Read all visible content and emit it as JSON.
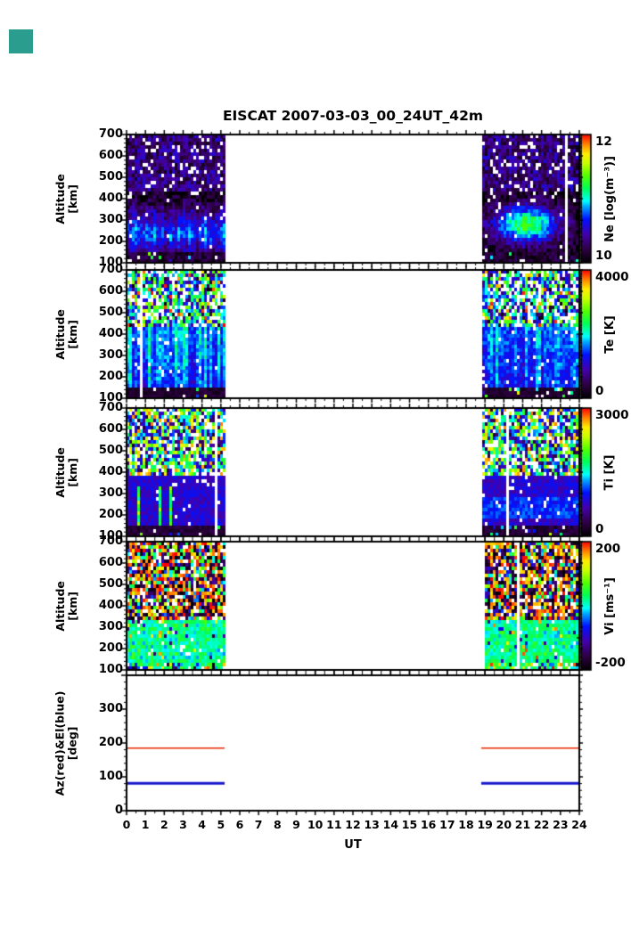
{
  "title": "EISCAT 2007-03-03_00_24UT_42m",
  "corner_square_color": "#2a9d8f",
  "x_axis": {
    "label": "UT",
    "range": [
      0,
      24
    ],
    "tick_labels": [
      "0",
      "1",
      "2",
      "3",
      "4",
      "5",
      "6",
      "7",
      "8",
      "9",
      "10",
      "11",
      "12",
      "13",
      "14",
      "15",
      "16",
      "17",
      "18",
      "19",
      "20",
      "21",
      "22",
      "23",
      "24"
    ]
  },
  "time_blocks": [
    [
      0,
      5.2
    ],
    [
      18.8,
      24
    ]
  ],
  "seed": 20070303,
  "colormap": [
    [
      0.0,
      "#000000"
    ],
    [
      0.1,
      "#2d0040"
    ],
    [
      0.22,
      "#4400aa"
    ],
    [
      0.34,
      "#0011ff"
    ],
    [
      0.44,
      "#00aaff"
    ],
    [
      0.48,
      "#00ffff"
    ],
    [
      0.58,
      "#00ff55"
    ],
    [
      0.68,
      "#55ff00"
    ],
    [
      0.78,
      "#ccff00"
    ],
    [
      0.85,
      "#ffee00"
    ],
    [
      0.92,
      "#ff8800"
    ],
    [
      1.0,
      "#ff0000"
    ]
  ],
  "chart_data": [
    {
      "type": "heatmap",
      "name": "Ne",
      "ylabel": "Altitude\n[km]",
      "y_range": [
        100,
        700
      ],
      "y_tick_labels": [
        "700",
        "600",
        "500",
        "400",
        "300",
        "200",
        "100"
      ],
      "colorbar": {
        "label": "Ne [log(m⁻³)]",
        "min": 10,
        "max": 12,
        "tick_labels": [
          "12",
          "10"
        ]
      },
      "model": {
        "kind": "ne",
        "base": 10.08,
        "noise": 0.38,
        "peak_alt": [
          240,
          280
        ],
        "peak_amp": [
          0.85,
          1.18
        ],
        "spread": [
          110,
          85
        ],
        "right_center": 21.2,
        "right_width": 1.7
      }
    },
    {
      "type": "heatmap",
      "name": "Te",
      "ylabel": "Altitude\n[km]",
      "y_range": [
        100,
        700
      ],
      "y_tick_labels": [
        "700",
        "600",
        "500",
        "400",
        "300",
        "200",
        "100"
      ],
      "colorbar": {
        "label": "Te [K]",
        "min": 0,
        "max": 4000,
        "tick_labels": [
          "4000",
          "0"
        ]
      },
      "model": {
        "kind": "te",
        "low_v": 300,
        "mid_base": 1050,
        "streak_amp": [
          900,
          650
        ],
        "noise": 600,
        "top_alt": 430
      }
    },
    {
      "type": "heatmap",
      "name": "Ti",
      "ylabel": "Altitude\n[km]",
      "y_range": [
        100,
        700
      ],
      "y_tick_labels": [
        "700",
        "600",
        "500",
        "400",
        "300",
        "200",
        "100"
      ],
      "colorbar": {
        "label": "Ti [K]",
        "min": 0,
        "max": 3000,
        "tick_labels": [
          "3000",
          "0"
        ]
      },
      "model": {
        "kind": "ti",
        "low_v": 250,
        "mid_base": 800,
        "mid_noise": 380,
        "streak_prob": 0.16,
        "streak_v": 1500,
        "band": [
          180,
          290,
          260
        ]
      }
    },
    {
      "type": "heatmap",
      "name": "Vi",
      "ylabel": "Altitude\n[km]",
      "y_range": [
        100,
        700
      ],
      "y_tick_labels": [
        "700",
        "600",
        "500",
        "400",
        "300",
        "200",
        "100"
      ],
      "colorbar": {
        "label": "Vi [ms⁻¹]",
        "min": -200,
        "max": 200,
        "tick_labels": [
          "200",
          "-200"
        ]
      },
      "model": {
        "kind": "vi",
        "low_mean": 18,
        "low_sd": 55,
        "top_alt": 335
      }
    },
    {
      "type": "line",
      "name": "AzEl",
      "ylabel": "Az(red)&El(blue)\n[deg]",
      "y_range": [
        0,
        400
      ],
      "y_tick_labels": [
        "300",
        "200",
        "100",
        "0"
      ],
      "series": [
        {
          "name": "Az",
          "color": "#e82800",
          "value": 185,
          "width": 1.6
        },
        {
          "name": "El",
          "color": "#1818cc",
          "value": 81,
          "width": 3
        }
      ]
    }
  ]
}
